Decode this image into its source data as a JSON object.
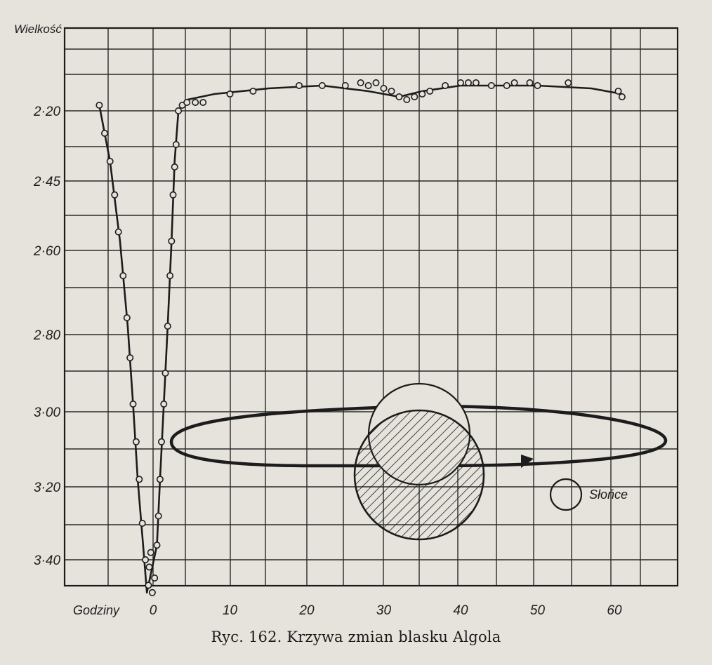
{
  "caption": "Ryc. 162. Krzywa zmian blasku Algola",
  "chart_data": {
    "type": "line",
    "title": "",
    "xlabel": "Godziny",
    "ylabel": "Wielkość",
    "x_ticks": [
      0,
      10,
      20,
      30,
      40,
      50,
      60
    ],
    "y_tick_values": [
      2.2,
      2.45,
      2.6,
      2.8,
      3.0,
      3.2,
      3.4
    ],
    "y_tick_labels": [
      "2·20",
      "2·45",
      "2·60",
      "2·80",
      "3·00",
      "3·20",
      "3·40"
    ],
    "y_inverted": true,
    "xlim": [
      -12,
      68
    ],
    "ylim": [
      2.04,
      3.58
    ],
    "grid": true,
    "series": [
      {
        "curve": [
          [
            -7,
            2.18
          ],
          [
            -5.6,
            2.38
          ],
          [
            -4.3,
            2.58
          ],
          [
            -3.3,
            2.78
          ],
          [
            -2.6,
            2.98
          ],
          [
            -2,
            3.18
          ],
          [
            -1.3,
            3.36
          ],
          [
            -0.8,
            3.49
          ],
          [
            0.5,
            3.36
          ],
          [
            0.9,
            3.18
          ],
          [
            1.4,
            2.98
          ],
          [
            1.9,
            2.78
          ],
          [
            2.4,
            2.58
          ],
          [
            2.8,
            2.38
          ],
          [
            3.3,
            2.2
          ],
          [
            4.5,
            2.16
          ],
          [
            8,
            2.14
          ],
          [
            15,
            2.12
          ],
          [
            22,
            2.11
          ],
          [
            28,
            2.13
          ],
          [
            32,
            2.15
          ],
          [
            35,
            2.13
          ],
          [
            40,
            2.11
          ],
          [
            50,
            2.11
          ],
          [
            57,
            2.12
          ],
          [
            61,
            2.14
          ]
        ],
        "observations": [
          [
            -7,
            2.18
          ],
          [
            -6.3,
            2.28
          ],
          [
            -5.6,
            2.38
          ],
          [
            -5,
            2.48
          ],
          [
            -4.5,
            2.56
          ],
          [
            -3.9,
            2.66
          ],
          [
            -3.4,
            2.76
          ],
          [
            -3,
            2.86
          ],
          [
            -2.6,
            2.98
          ],
          [
            -2.2,
            3.08
          ],
          [
            -1.8,
            3.18
          ],
          [
            -1.4,
            3.3
          ],
          [
            -1,
            3.4
          ],
          [
            -0.6,
            3.47
          ],
          [
            -0.5,
            3.42
          ],
          [
            -0.3,
            3.38
          ],
          [
            -0.1,
            3.49
          ],
          [
            0.2,
            3.45
          ],
          [
            0.5,
            3.36
          ],
          [
            0.7,
            3.28
          ],
          [
            0.9,
            3.18
          ],
          [
            1.1,
            3.08
          ],
          [
            1.4,
            2.98
          ],
          [
            1.6,
            2.9
          ],
          [
            1.9,
            2.78
          ],
          [
            2.2,
            2.66
          ],
          [
            2.4,
            2.58
          ],
          [
            2.6,
            2.48
          ],
          [
            2.8,
            2.4
          ],
          [
            3,
            2.32
          ],
          [
            3.3,
            2.2
          ],
          [
            3.8,
            2.18
          ],
          [
            4.4,
            2.17
          ],
          [
            5.5,
            2.17
          ],
          [
            6.5,
            2.17
          ],
          [
            10,
            2.14
          ],
          [
            13,
            2.13
          ],
          [
            19,
            2.11
          ],
          [
            22,
            2.11
          ],
          [
            25,
            2.11
          ],
          [
            27,
            2.1
          ],
          [
            28,
            2.11
          ],
          [
            29,
            2.1
          ],
          [
            30,
            2.12
          ],
          [
            31,
            2.13
          ],
          [
            32,
            2.15
          ],
          [
            33,
            2.16
          ],
          [
            34,
            2.15
          ],
          [
            35,
            2.14
          ],
          [
            36,
            2.13
          ],
          [
            38,
            2.11
          ],
          [
            40,
            2.1
          ],
          [
            41,
            2.1
          ],
          [
            42,
            2.1
          ],
          [
            44,
            2.11
          ],
          [
            46,
            2.11
          ],
          [
            47,
            2.1
          ],
          [
            49,
            2.1
          ],
          [
            50,
            2.11
          ],
          [
            54,
            2.1
          ],
          [
            60.5,
            2.13
          ],
          [
            61,
            2.15
          ]
        ]
      }
    ]
  },
  "diagram": {
    "sun_label": "Słońce"
  }
}
